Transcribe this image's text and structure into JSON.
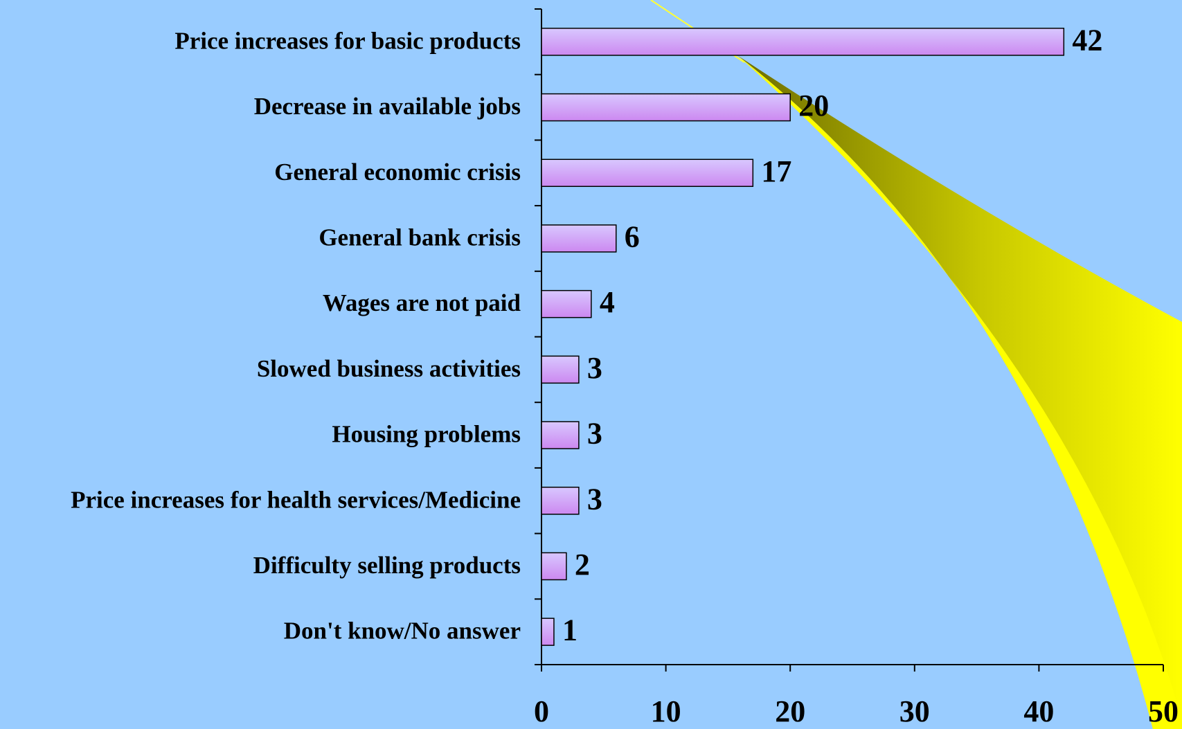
{
  "chart_data": {
    "type": "bar",
    "orientation": "horizontal",
    "categories": [
      "Price increases for basic products",
      "Decrease in available jobs",
      "General economic crisis",
      "General bank crisis",
      "Wages are not paid",
      "Slowed business activities",
      "Housing problems",
      "Price increases for health services/Medicine",
      "Difficulty selling products",
      "Don't know/No answer"
    ],
    "values": [
      42,
      20,
      17,
      6,
      4,
      3,
      3,
      3,
      2,
      1
    ],
    "color": "#cc99ff",
    "xlim": [
      0,
      50
    ],
    "xticks": [
      0,
      10,
      20,
      30,
      40,
      50
    ]
  }
}
